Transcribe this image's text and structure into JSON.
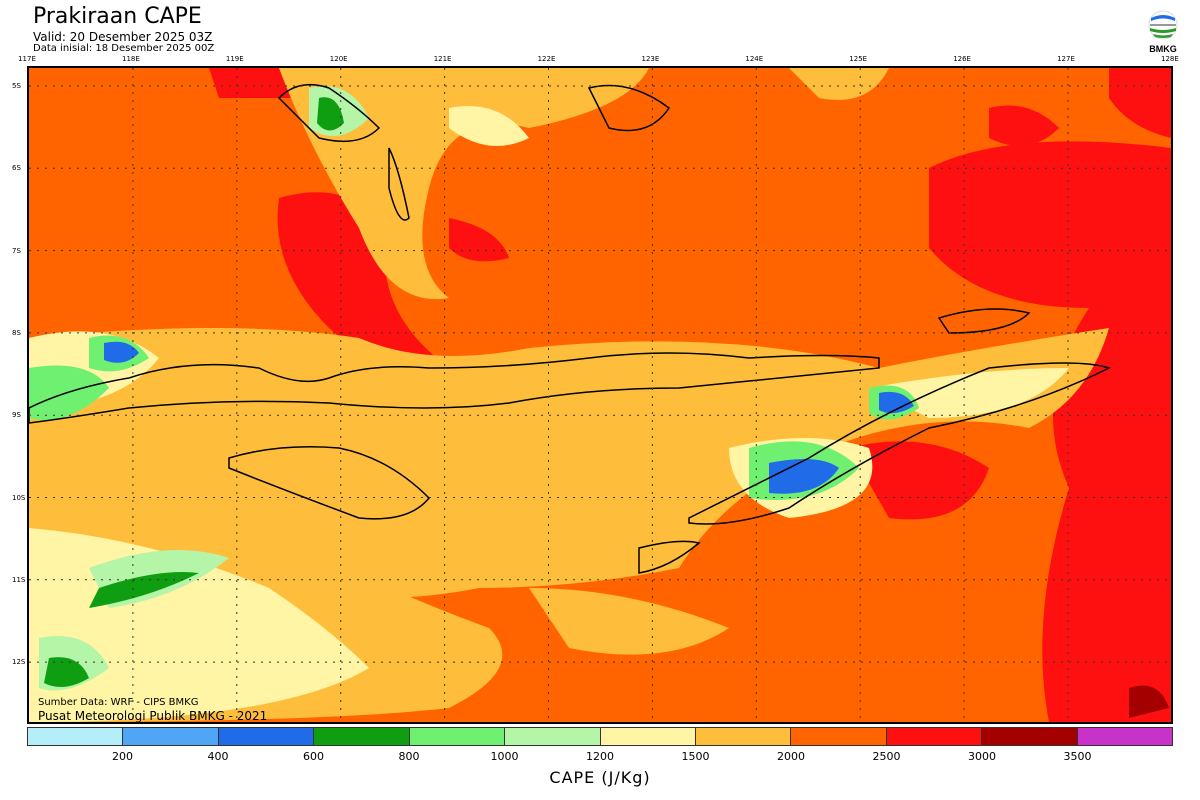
{
  "header": {
    "title": "Prakiraan CAPE",
    "valid": "Valid: 20 Desember 2025 03Z",
    "initial": "Data inisial: 18 Desember 2025 00Z",
    "logo_text": "BMKG"
  },
  "axes": {
    "longitudes": [
      "117E",
      "118E",
      "119E",
      "120E",
      "121E",
      "122E",
      "123E",
      "124E",
      "125E",
      "126E",
      "127E",
      "128E"
    ],
    "latitudes": [
      "5S",
      "6S",
      "7S",
      "8S",
      "9S",
      "10S",
      "11S",
      "12S"
    ]
  },
  "credits": {
    "source": "Sumber Data: WRF - CIPS BMKG",
    "publisher": "Pusat Meteorologi Publik BMKG - 2021"
  },
  "legend": {
    "label": "CAPE (J/Kg)",
    "ticks": [
      "200",
      "400",
      "600",
      "800",
      "1000",
      "1200",
      "1500",
      "2000",
      "2500",
      "3000",
      "3500"
    ],
    "colors": [
      "#b4eef8",
      "#50a5f5",
      "#1f6be8",
      "#0f9e12",
      "#70f070",
      "#b4f5a8",
      "#fff5a5",
      "#ffbd3c",
      "#ff6400",
      "#ff1010",
      "#a50000",
      "#c832c8"
    ]
  }
}
